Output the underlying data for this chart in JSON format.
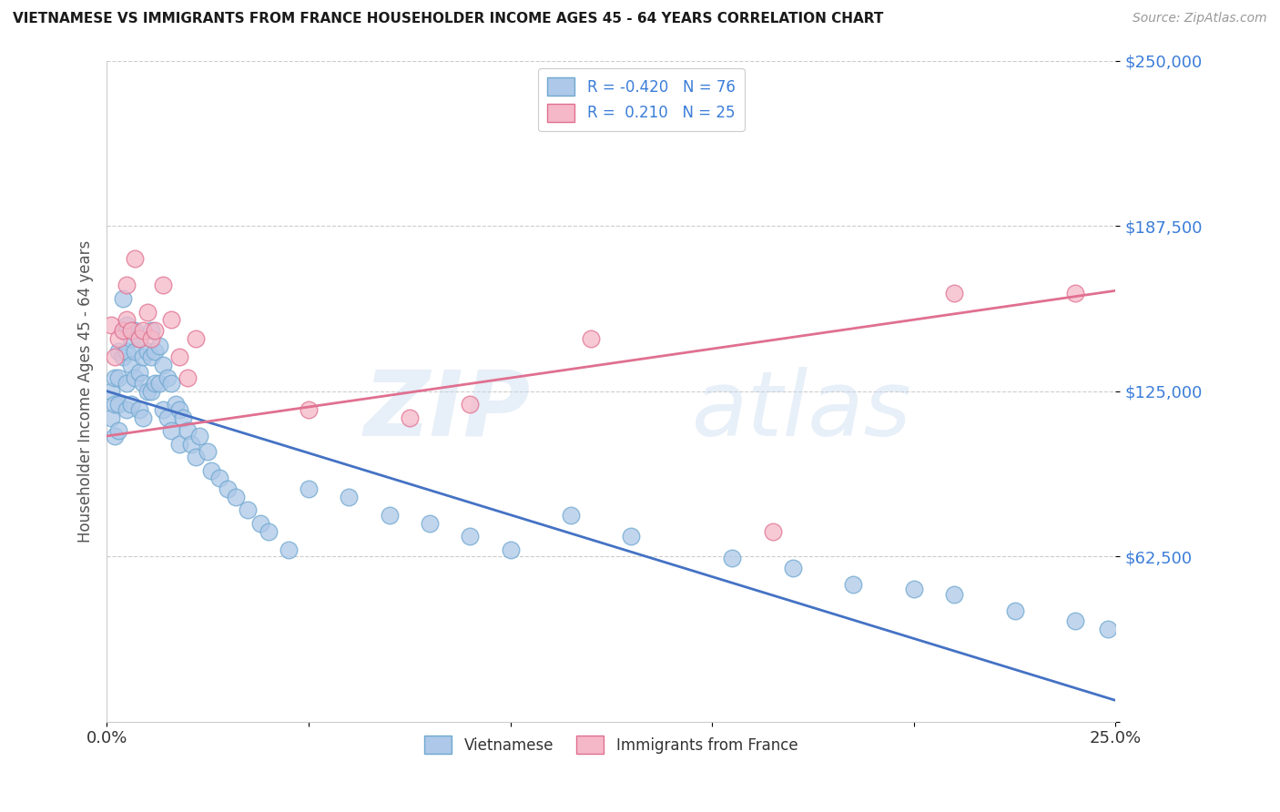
{
  "title": "VIETNAMESE VS IMMIGRANTS FROM FRANCE HOUSEHOLDER INCOME AGES 45 - 64 YEARS CORRELATION CHART",
  "source": "Source: ZipAtlas.com",
  "ylabel": "Householder Income Ages 45 - 64 years",
  "watermark_zip": "ZIP",
  "watermark_atlas": "atlas",
  "xlim": [
    0.0,
    0.25
  ],
  "ylim": [
    0,
    250000
  ],
  "yticks": [
    0,
    62500,
    125000,
    187500,
    250000
  ],
  "ytick_labels": [
    "",
    "$62,500",
    "$125,000",
    "$187,500",
    "$250,000"
  ],
  "xtick_positions": [
    0.0,
    0.05,
    0.1,
    0.15,
    0.2,
    0.25
  ],
  "xtick_labels": [
    "0.0%",
    "",
    "",
    "",
    "",
    "25.0%"
  ],
  "viet_color": "#adc8e8",
  "france_color": "#f5b8c8",
  "viet_edge": "#6fa8d0",
  "france_edge": "#e07090",
  "line_viet_color": "#4472c4",
  "line_france_color": "#e07090",
  "legend1_labels": [
    "R = -0.420   N = 76",
    "R =  0.210   N = 25"
  ],
  "legend2_labels": [
    "Vietnamese",
    "Immigrants from France"
  ],
  "viet_x": [
    0.001,
    0.001,
    0.002,
    0.002,
    0.002,
    0.003,
    0.003,
    0.003,
    0.003,
    0.004,
    0.004,
    0.004,
    0.005,
    0.005,
    0.005,
    0.005,
    0.006,
    0.006,
    0.006,
    0.007,
    0.007,
    0.007,
    0.008,
    0.008,
    0.008,
    0.009,
    0.009,
    0.009,
    0.01,
    0.01,
    0.011,
    0.011,
    0.011,
    0.012,
    0.012,
    0.013,
    0.013,
    0.014,
    0.014,
    0.015,
    0.015,
    0.016,
    0.016,
    0.017,
    0.018,
    0.018,
    0.019,
    0.02,
    0.021,
    0.022,
    0.023,
    0.025,
    0.026,
    0.028,
    0.03,
    0.032,
    0.035,
    0.038,
    0.04,
    0.045,
    0.05,
    0.06,
    0.07,
    0.08,
    0.09,
    0.1,
    0.115,
    0.13,
    0.155,
    0.17,
    0.185,
    0.2,
    0.21,
    0.225,
    0.24,
    0.248
  ],
  "viet_y": [
    125000,
    115000,
    130000,
    120000,
    108000,
    140000,
    130000,
    120000,
    110000,
    160000,
    148000,
    138000,
    150000,
    140000,
    128000,
    118000,
    145000,
    135000,
    120000,
    148000,
    140000,
    130000,
    145000,
    132000,
    118000,
    138000,
    128000,
    115000,
    140000,
    125000,
    148000,
    138000,
    125000,
    140000,
    128000,
    142000,
    128000,
    135000,
    118000,
    130000,
    115000,
    128000,
    110000,
    120000,
    118000,
    105000,
    115000,
    110000,
    105000,
    100000,
    108000,
    102000,
    95000,
    92000,
    88000,
    85000,
    80000,
    75000,
    72000,
    65000,
    88000,
    85000,
    78000,
    75000,
    70000,
    65000,
    78000,
    70000,
    62000,
    58000,
    52000,
    50000,
    48000,
    42000,
    38000,
    35000
  ],
  "france_x": [
    0.001,
    0.002,
    0.003,
    0.004,
    0.005,
    0.005,
    0.006,
    0.007,
    0.008,
    0.009,
    0.01,
    0.011,
    0.012,
    0.014,
    0.016,
    0.018,
    0.02,
    0.022,
    0.05,
    0.075,
    0.09,
    0.12,
    0.165,
    0.21,
    0.24
  ],
  "france_y": [
    150000,
    138000,
    145000,
    148000,
    165000,
    152000,
    148000,
    175000,
    145000,
    148000,
    155000,
    145000,
    148000,
    165000,
    152000,
    138000,
    130000,
    145000,
    118000,
    115000,
    120000,
    145000,
    72000,
    162000,
    162000
  ]
}
